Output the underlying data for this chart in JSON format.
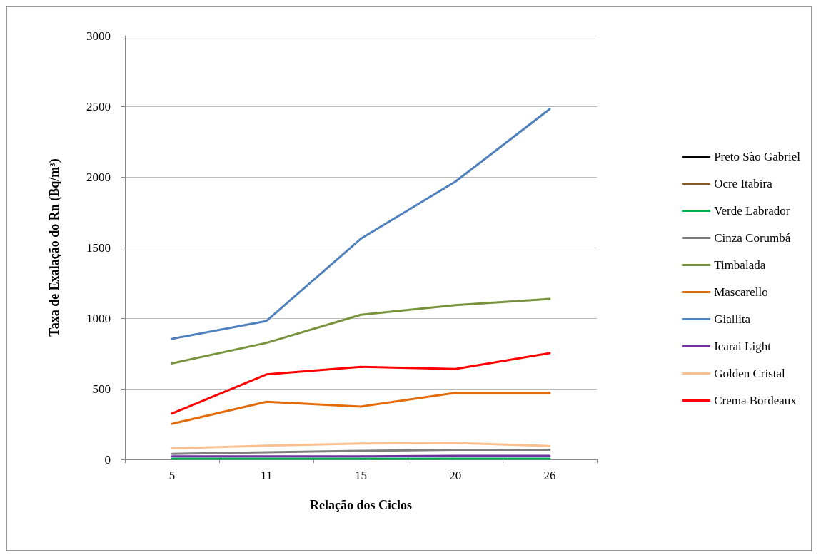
{
  "chart_data": {
    "type": "line",
    "xlabel": "Relação dos Ciclos",
    "ylabel": "Taxa de Exalação do Rn (Bq/m³)",
    "categories": [
      "5",
      "11",
      "15",
      "20",
      "26"
    ],
    "ylim": [
      0,
      3000
    ],
    "yticks": [
      0,
      500,
      1000,
      1500,
      2000,
      2500,
      3000
    ],
    "grid": "y",
    "legend": "right",
    "marker": "none",
    "line_style": "solid",
    "series": [
      {
        "name": "Preto São Gabriel",
        "color": "#000000",
        "values": [
          null,
          null,
          null,
          null,
          null
        ]
      },
      {
        "name": "Ocre Itabira",
        "color": "#8b5a1a",
        "values": [
          null,
          null,
          null,
          null,
          null
        ]
      },
      {
        "name": "Verde Labrador",
        "color": "#00b050",
        "values": [
          5,
          5,
          5,
          5,
          5
        ]
      },
      {
        "name": "Cinza Corumbá",
        "color": "#7f7f7f",
        "values": [
          39,
          50,
          60,
          68,
          68
        ]
      },
      {
        "name": "Timbalada",
        "color": "#77933c",
        "values": [
          680,
          825,
          1024,
          1092,
          1136
        ]
      },
      {
        "name": "Mascarello",
        "color": "#e36c0a",
        "values": [
          252,
          408,
          374,
          471,
          471
        ]
      },
      {
        "name": "Giallita",
        "color": "#4f81bd",
        "values": [
          854,
          980,
          1563,
          1966,
          2480
        ]
      },
      {
        "name": "Icarai Light",
        "color": "#7030a0",
        "values": [
          22,
          22,
          22,
          25,
          25
        ]
      },
      {
        "name": "Golden Cristal",
        "color": "#fac090",
        "values": [
          78,
          97,
          112,
          116,
          95
        ]
      },
      {
        "name": "Crema Bordeaux",
        "color": "#ff0000",
        "values": [
          325,
          602,
          655,
          640,
          752
        ]
      }
    ]
  }
}
